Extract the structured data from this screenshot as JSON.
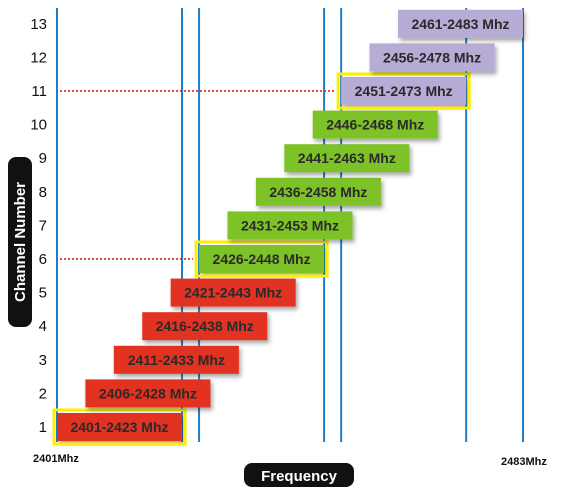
{
  "chart_data": {
    "type": "bar",
    "subtype": "range",
    "orientation": "horizontal",
    "title": "",
    "xlabel": "Frequency",
    "ylabel": "Channel Number",
    "x_edge_labels": {
      "left": "2401Mhz",
      "right": "2483Mhz"
    },
    "xlim": [
      2401,
      2483
    ],
    "grid": true,
    "non_overlapping_channels": [
      1,
      6,
      11
    ],
    "channels": [
      {
        "channel": 1,
        "label": "2401-2423 Mhz",
        "start": 2401,
        "end": 2423,
        "color": "#e23020",
        "highlight": true
      },
      {
        "channel": 2,
        "label": "2406-2428 Mhz",
        "start": 2406,
        "end": 2428,
        "color": "#e23020",
        "highlight": false
      },
      {
        "channel": 3,
        "label": "2411-2433 Mhz",
        "start": 2411,
        "end": 2433,
        "color": "#e23020",
        "highlight": false
      },
      {
        "channel": 4,
        "label": "2416-2438 Mhz",
        "start": 2416,
        "end": 2438,
        "color": "#e23020",
        "highlight": false
      },
      {
        "channel": 5,
        "label": "2421-2443 Mhz",
        "start": 2421,
        "end": 2443,
        "color": "#e23020",
        "highlight": false
      },
      {
        "channel": 6,
        "label": "2426-2448 Mhz",
        "start": 2426,
        "end": 2448,
        "color": "#7dc225",
        "highlight": true
      },
      {
        "channel": 7,
        "label": "2431-2453 Mhz",
        "start": 2431,
        "end": 2453,
        "color": "#7dc225",
        "highlight": false
      },
      {
        "channel": 8,
        "label": "2436-2458 Mhz",
        "start": 2436,
        "end": 2458,
        "color": "#7dc225",
        "highlight": false
      },
      {
        "channel": 9,
        "label": "2441-2463 Mhz",
        "start": 2441,
        "end": 2463,
        "color": "#7dc225",
        "highlight": false
      },
      {
        "channel": 10,
        "label": "2446-2468 Mhz",
        "start": 2446,
        "end": 2468,
        "color": "#7dc225",
        "highlight": false
      },
      {
        "channel": 11,
        "label": "2451-2473 Mhz",
        "start": 2451,
        "end": 2473,
        "color": "#b7acd6",
        "highlight": true
      },
      {
        "channel": 12,
        "label": "2456-2478 Mhz",
        "start": 2456,
        "end": 2478,
        "color": "#b7acd6",
        "highlight": false
      },
      {
        "channel": 13,
        "label": "2461-2483 Mhz",
        "start": 2461,
        "end": 2483,
        "color": "#b7acd6",
        "highlight": false
      }
    ],
    "colors": {
      "gridline": "#1e7fc8",
      "highlight_border": "#ffee00",
      "dotted_guide": "#e01010",
      "label_pill": "#111111"
    }
  }
}
